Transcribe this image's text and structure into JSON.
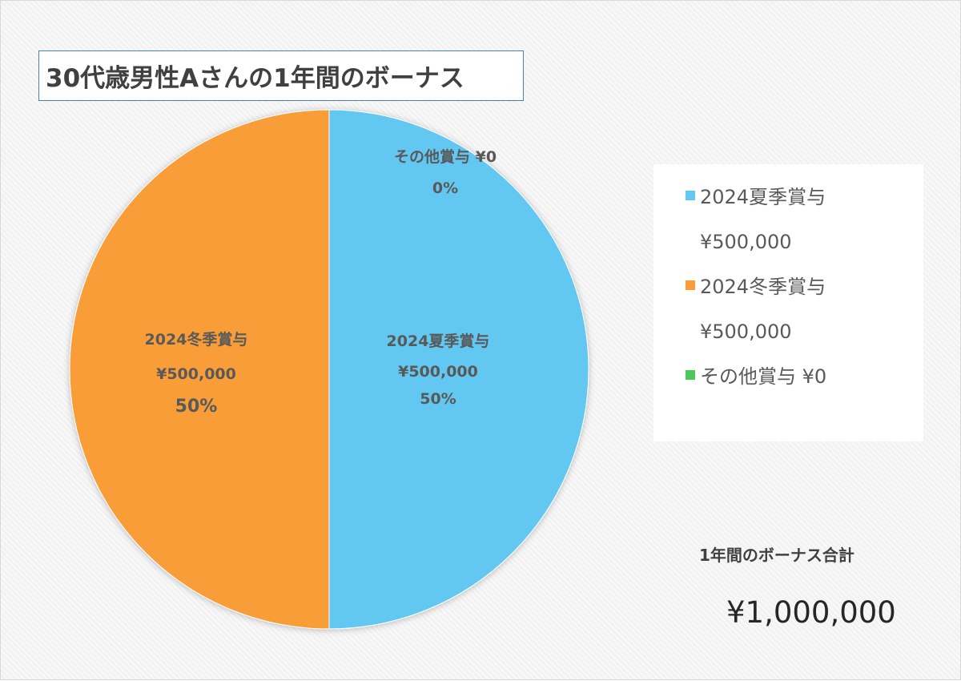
{
  "title": "30代歳男性Aさんの1年間のボーナス",
  "chart_data": {
    "type": "pie",
    "title": "30代歳男性Aさんの1年間のボーナス",
    "slices": [
      {
        "name": "2024夏季賞与",
        "value": 500000,
        "value_label": "¥500,000",
        "percent_label": "50%",
        "color": "#62c8f1"
      },
      {
        "name": "2024冬季賞与",
        "value": 500000,
        "value_label": "¥500,000",
        "percent_label": "50%",
        "color": "#f99d37"
      },
      {
        "name": "その他賞与",
        "value": 0,
        "value_label": "¥0",
        "percent_label": "0%",
        "color": "#4cc95a"
      }
    ],
    "legend_position": "right"
  },
  "legend": {
    "items": [
      {
        "label": "2024夏季賞与",
        "value": "¥500,000",
        "color": "#62c8f1"
      },
      {
        "label": "2024冬季賞与",
        "value": "¥500,000",
        "color": "#f99d37"
      },
      {
        "label": "その他賞与 ¥0",
        "color": "#4cc95a"
      }
    ]
  },
  "total": {
    "label": "1年間のボーナス合計",
    "value": "¥1,000,000"
  }
}
